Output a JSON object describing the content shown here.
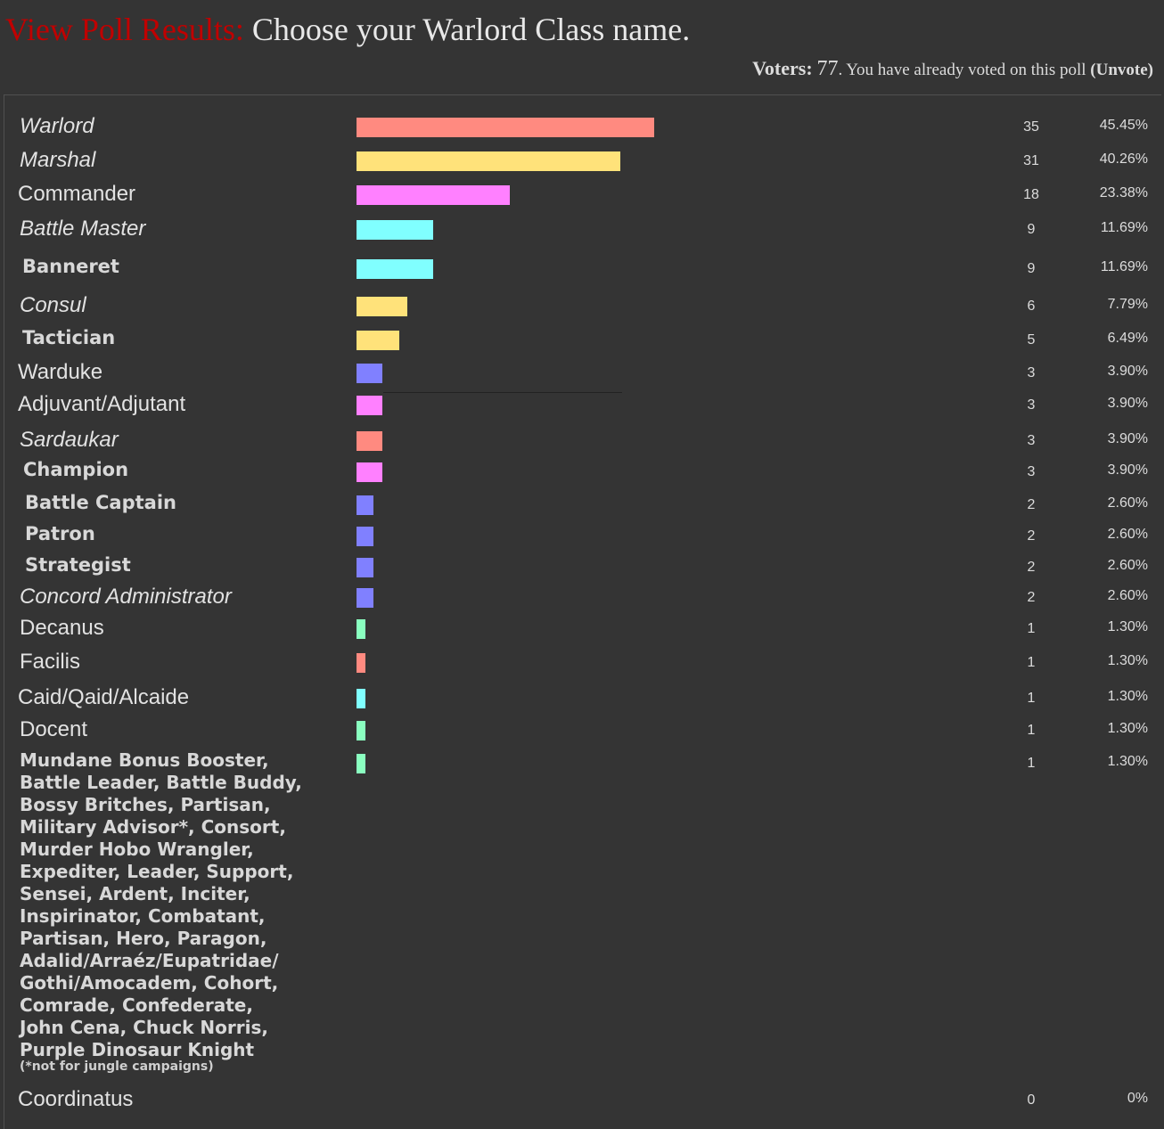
{
  "header": {
    "lead": "View Poll Results:",
    "question": "Choose your Warlord Class name."
  },
  "voters": {
    "label": "Voters:",
    "count": "77",
    "status": ". You have already voted on this poll",
    "unvote": "(Unvote)"
  },
  "colors": {
    "background": "#343434",
    "title_lead": "#c00000",
    "bar_red": "#ff8a80",
    "bar_yellow": "#ffe27a",
    "bar_pink": "#ff80ff",
    "bar_cyan": "#80ffff",
    "bar_blue": "#8080ff",
    "bar_green": "#8affc0"
  },
  "options": [
    {
      "label": "Warlord",
      "votes": "35",
      "percent": "45.45%",
      "share": 0.4545,
      "color": "#ff8a80",
      "style": "it"
    },
    {
      "label": "Marshal",
      "votes": "31",
      "percent": "40.26%",
      "share": 0.4026,
      "color": "#ffe27a",
      "style": "it"
    },
    {
      "label": "Commander",
      "votes": "18",
      "percent": "23.38%",
      "share": 0.2338,
      "color": "#ff80ff",
      "style": "n"
    },
    {
      "label": "Battle Master",
      "votes": "9",
      "percent": "11.69%",
      "share": 0.1169,
      "color": "#80ffff",
      "style": "it"
    },
    {
      "label": "Banneret",
      "votes": "9",
      "percent": "11.69%",
      "share": 0.1169,
      "color": "#80ffff",
      "style": "b"
    },
    {
      "label": "Consul",
      "votes": "6",
      "percent": "7.79%",
      "share": 0.0779,
      "color": "#ffe27a",
      "style": "it"
    },
    {
      "label": "Tactician",
      "votes": "5",
      "percent": "6.49%",
      "share": 0.0649,
      "color": "#ffe27a",
      "style": "b"
    },
    {
      "label": "Warduke",
      "votes": "3",
      "percent": "3.90%",
      "share": 0.039,
      "color": "#8080ff",
      "style": "n"
    },
    {
      "label": "Adjuvant/Adjutant",
      "votes": "3",
      "percent": "3.90%",
      "share": 0.039,
      "color": "#ff80ff",
      "style": "n"
    },
    {
      "label": "Sardaukar",
      "votes": "3",
      "percent": "3.90%",
      "share": 0.039,
      "color": "#ff8a80",
      "style": "it"
    },
    {
      "label": "Champion",
      "votes": "3",
      "percent": "3.90%",
      "share": 0.039,
      "color": "#ff80ff",
      "style": "b"
    },
    {
      "label": "Battle Captain",
      "votes": "2",
      "percent": "2.60%",
      "share": 0.026,
      "color": "#8080ff",
      "style": "b"
    },
    {
      "label": "Patron",
      "votes": "2",
      "percent": "2.60%",
      "share": 0.026,
      "color": "#8080ff",
      "style": "b"
    },
    {
      "label": "Strategist",
      "votes": "2",
      "percent": "2.60%",
      "share": 0.026,
      "color": "#8080ff",
      "style": "b"
    },
    {
      "label": "Concord Administrator",
      "votes": "2",
      "percent": "2.60%",
      "share": 0.026,
      "color": "#8080ff",
      "style": "it"
    },
    {
      "label": "Decanus",
      "votes": "1",
      "percent": "1.30%",
      "share": 0.013,
      "color": "#8affc0",
      "style": "n"
    },
    {
      "label": "Facilis",
      "votes": "1",
      "percent": "1.30%",
      "share": 0.013,
      "color": "#ff8a80",
      "style": "n"
    },
    {
      "label": "Caid/Qaid/Alcaide",
      "votes": "1",
      "percent": "1.30%",
      "share": 0.013,
      "color": "#80ffff",
      "style": "n"
    },
    {
      "label": "Docent",
      "votes": "1",
      "percent": "1.30%",
      "share": 0.013,
      "color": "#8affc0",
      "style": "n"
    },
    {
      "label": "",
      "votes": "1",
      "percent": "1.30%",
      "share": 0.013,
      "color": "#8affc0",
      "style": "n"
    },
    {
      "label": "Coordinatus",
      "votes": "0",
      "percent": "0%",
      "share": 0,
      "color": "#8affc0",
      "style": "n"
    }
  ],
  "multi_option": {
    "lines": [
      "Mundane Bonus Booster,",
      "Battle Leader, Battle Buddy,",
      "Bossy Britches, Partisan,",
      "Military Advisor*, Consort,",
      "Murder Hobo Wrangler,",
      "Expediter, Leader, Support,",
      "Sensei, Ardent, Inciter,",
      "Inspirinator, Combatant,",
      "Partisan, Hero, Paragon,",
      "Adalid/Arraéz/Eupatridae/",
      "Gothi/Amocadem, Cohort,",
      "Comrade, Confederate,",
      "John Cena, Chuck Norris,",
      "Purple Dinosaur Knight"
    ],
    "note": "(*not for jungle campaigns)"
  }
}
